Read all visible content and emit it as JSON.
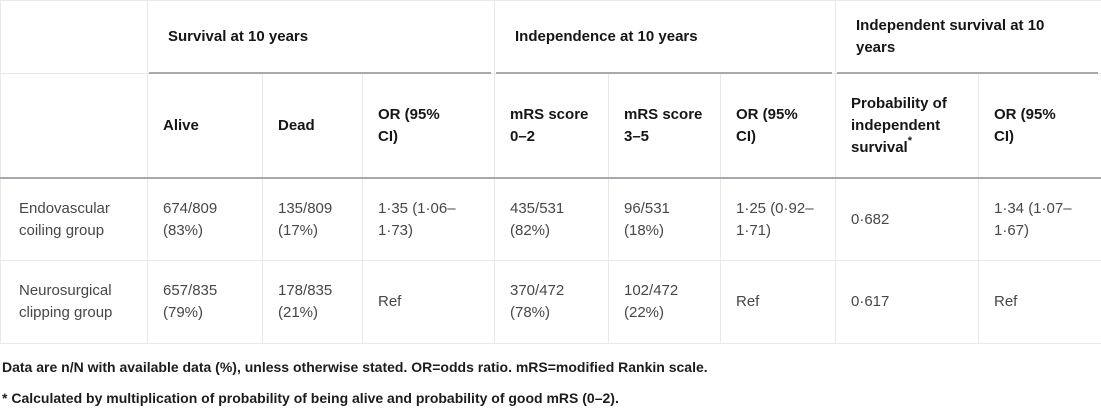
{
  "table": {
    "column_groups": [
      {
        "label": "Survival at 10 years"
      },
      {
        "label": "Independence at 10 years"
      },
      {
        "label": "Independent survival at 10\nyears"
      }
    ],
    "columns": [
      "Alive",
      "Dead",
      "OR (95%\nCI)",
      "mRS score\n0–2",
      "mRS score\n3–5",
      "OR (95%\nCI)",
      "Probability of\nindependent\nsurvival",
      "OR (95%\nCI)"
    ],
    "footnote_marker": "*",
    "rows": [
      {
        "label": "Endovascular\ncoiling group",
        "cells": [
          "674/809\n(83%)",
          "135/809\n(17%)",
          "1·35 (1·06–\n1·73)",
          "435/531\n(82%)",
          "96/531\n(18%)",
          "1·25 (0·92–\n1·71)",
          "0·682",
          "1·34 (1·07–\n1·67)"
        ]
      },
      {
        "label": "Neurosurgical\nclipping group",
        "cells": [
          "657/835\n(79%)",
          "178/835\n(21%)",
          "Ref",
          "370/472\n(78%)",
          "102/472\n(22%)",
          "Ref",
          "0·617",
          "Ref"
        ]
      }
    ],
    "footnotes": [
      "Data are n/N with available data (%), unless otherwise stated. OR=odds ratio. mRS=modified Rankin scale.",
      "* Calculated by multiplication of probability of being alive and probability of good mRS (0–2)."
    ]
  },
  "colors": {
    "border_light": "#e9e9ec",
    "border_dark": "#a8a8ae",
    "header_text": "#161616",
    "body_text": "#474747"
  }
}
